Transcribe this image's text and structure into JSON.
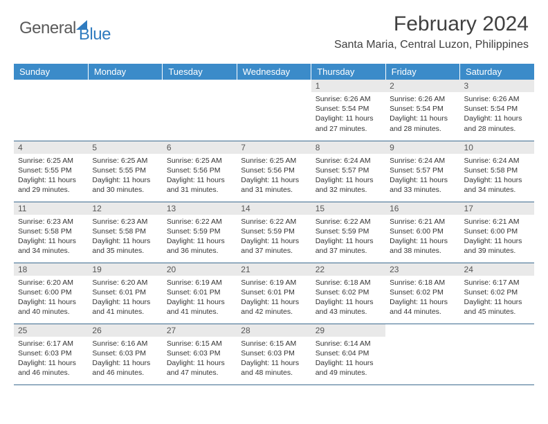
{
  "logo": {
    "text1": "General",
    "text2": "Blue"
  },
  "title": "February 2024",
  "location": "Santa Maria, Central Luzon, Philippines",
  "header_bg": "#3b8bc9",
  "daynum_bg": "#e9e9e9",
  "border_color": "#3b6a8f",
  "weekdays": [
    "Sunday",
    "Monday",
    "Tuesday",
    "Wednesday",
    "Thursday",
    "Friday",
    "Saturday"
  ],
  "weeks": [
    [
      null,
      null,
      null,
      null,
      {
        "n": "1",
        "sr": "Sunrise: 6:26 AM",
        "ss": "Sunset: 5:54 PM",
        "dl": "Daylight: 11 hours and 27 minutes."
      },
      {
        "n": "2",
        "sr": "Sunrise: 6:26 AM",
        "ss": "Sunset: 5:54 PM",
        "dl": "Daylight: 11 hours and 28 minutes."
      },
      {
        "n": "3",
        "sr": "Sunrise: 6:26 AM",
        "ss": "Sunset: 5:54 PM",
        "dl": "Daylight: 11 hours and 28 minutes."
      }
    ],
    [
      {
        "n": "4",
        "sr": "Sunrise: 6:25 AM",
        "ss": "Sunset: 5:55 PM",
        "dl": "Daylight: 11 hours and 29 minutes."
      },
      {
        "n": "5",
        "sr": "Sunrise: 6:25 AM",
        "ss": "Sunset: 5:55 PM",
        "dl": "Daylight: 11 hours and 30 minutes."
      },
      {
        "n": "6",
        "sr": "Sunrise: 6:25 AM",
        "ss": "Sunset: 5:56 PM",
        "dl": "Daylight: 11 hours and 31 minutes."
      },
      {
        "n": "7",
        "sr": "Sunrise: 6:25 AM",
        "ss": "Sunset: 5:56 PM",
        "dl": "Daylight: 11 hours and 31 minutes."
      },
      {
        "n": "8",
        "sr": "Sunrise: 6:24 AM",
        "ss": "Sunset: 5:57 PM",
        "dl": "Daylight: 11 hours and 32 minutes."
      },
      {
        "n": "9",
        "sr": "Sunrise: 6:24 AM",
        "ss": "Sunset: 5:57 PM",
        "dl": "Daylight: 11 hours and 33 minutes."
      },
      {
        "n": "10",
        "sr": "Sunrise: 6:24 AM",
        "ss": "Sunset: 5:58 PM",
        "dl": "Daylight: 11 hours and 34 minutes."
      }
    ],
    [
      {
        "n": "11",
        "sr": "Sunrise: 6:23 AM",
        "ss": "Sunset: 5:58 PM",
        "dl": "Daylight: 11 hours and 34 minutes."
      },
      {
        "n": "12",
        "sr": "Sunrise: 6:23 AM",
        "ss": "Sunset: 5:58 PM",
        "dl": "Daylight: 11 hours and 35 minutes."
      },
      {
        "n": "13",
        "sr": "Sunrise: 6:22 AM",
        "ss": "Sunset: 5:59 PM",
        "dl": "Daylight: 11 hours and 36 minutes."
      },
      {
        "n": "14",
        "sr": "Sunrise: 6:22 AM",
        "ss": "Sunset: 5:59 PM",
        "dl": "Daylight: 11 hours and 37 minutes."
      },
      {
        "n": "15",
        "sr": "Sunrise: 6:22 AM",
        "ss": "Sunset: 5:59 PM",
        "dl": "Daylight: 11 hours and 37 minutes."
      },
      {
        "n": "16",
        "sr": "Sunrise: 6:21 AM",
        "ss": "Sunset: 6:00 PM",
        "dl": "Daylight: 11 hours and 38 minutes."
      },
      {
        "n": "17",
        "sr": "Sunrise: 6:21 AM",
        "ss": "Sunset: 6:00 PM",
        "dl": "Daylight: 11 hours and 39 minutes."
      }
    ],
    [
      {
        "n": "18",
        "sr": "Sunrise: 6:20 AM",
        "ss": "Sunset: 6:00 PM",
        "dl": "Daylight: 11 hours and 40 minutes."
      },
      {
        "n": "19",
        "sr": "Sunrise: 6:20 AM",
        "ss": "Sunset: 6:01 PM",
        "dl": "Daylight: 11 hours and 41 minutes."
      },
      {
        "n": "20",
        "sr": "Sunrise: 6:19 AM",
        "ss": "Sunset: 6:01 PM",
        "dl": "Daylight: 11 hours and 41 minutes."
      },
      {
        "n": "21",
        "sr": "Sunrise: 6:19 AM",
        "ss": "Sunset: 6:01 PM",
        "dl": "Daylight: 11 hours and 42 minutes."
      },
      {
        "n": "22",
        "sr": "Sunrise: 6:18 AM",
        "ss": "Sunset: 6:02 PM",
        "dl": "Daylight: 11 hours and 43 minutes."
      },
      {
        "n": "23",
        "sr": "Sunrise: 6:18 AM",
        "ss": "Sunset: 6:02 PM",
        "dl": "Daylight: 11 hours and 44 minutes."
      },
      {
        "n": "24",
        "sr": "Sunrise: 6:17 AM",
        "ss": "Sunset: 6:02 PM",
        "dl": "Daylight: 11 hours and 45 minutes."
      }
    ],
    [
      {
        "n": "25",
        "sr": "Sunrise: 6:17 AM",
        "ss": "Sunset: 6:03 PM",
        "dl": "Daylight: 11 hours and 46 minutes."
      },
      {
        "n": "26",
        "sr": "Sunrise: 6:16 AM",
        "ss": "Sunset: 6:03 PM",
        "dl": "Daylight: 11 hours and 46 minutes."
      },
      {
        "n": "27",
        "sr": "Sunrise: 6:15 AM",
        "ss": "Sunset: 6:03 PM",
        "dl": "Daylight: 11 hours and 47 minutes."
      },
      {
        "n": "28",
        "sr": "Sunrise: 6:15 AM",
        "ss": "Sunset: 6:03 PM",
        "dl": "Daylight: 11 hours and 48 minutes."
      },
      {
        "n": "29",
        "sr": "Sunrise: 6:14 AM",
        "ss": "Sunset: 6:04 PM",
        "dl": "Daylight: 11 hours and 49 minutes."
      },
      null,
      null
    ]
  ]
}
